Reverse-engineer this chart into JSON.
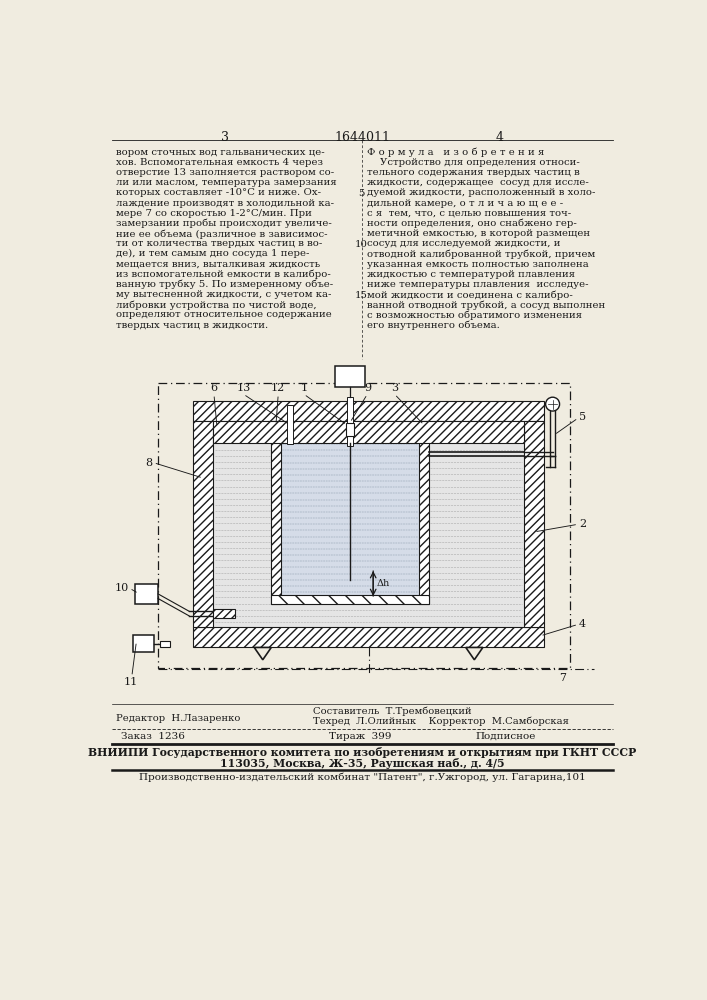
{
  "bg_color": "#f0ece0",
  "text_color": "#1a1a1a",
  "title_number": "1644011",
  "page_left": "3",
  "page_right": "4",
  "col1_text": [
    "вором сточных вод гальванических це-",
    "хов. Вспомогательная емкость 4 через",
    "отверстие 13 заполняется раствором со-",
    "ли или маслом, температура замерзания",
    "которых составляет -10°C и ниже. Ох-",
    "лаждение производят в холодильной ка-",
    "мере 7 со скоростью 1-2°С/мин. При",
    "замерзании пробы происходит увеличе-",
    "ние ее объема (различное в зависимос-",
    "ти от количества твердых частиц в во-",
    "де), и тем самым дно сосуда 1 пере-",
    "мещается вниз, выталкивая жидкость",
    "из вспомогательной емкости в калибро-",
    "ванную трубку 5. По измеренному объе-",
    "му вытесненной жидкости, с учетом ка-",
    "либровки устройства по чистой воде,",
    "определяют относительное содержание",
    "твердых частиц в жидкости."
  ],
  "col2_header": "Ф о р м у л а   и з о б р е т е н и я",
  "col2_text": [
    "    Устройство для определения относи-",
    "тельного содержания твердых частиц в",
    "жидкости, содержащее  сосуд для иссле-",
    "дуемой жидкости, расположенный в холо-",
    "дильной камере, о т л и ч а ю щ е е -",
    "с я  тем, что, с целью повышения точ-",
    "ности определения, оно снабжено гер-",
    "метичной емкостью, в которой размещен",
    "сосуд для исследуемой жидкости, и",
    "отводной калиброванной трубкой, причем",
    "указанная емкость полностью заполнена",
    "жидкостью с температурой плавления",
    "ниже температуры плавления  исследуе-",
    "мой жидкости и соединена с калибро-",
    "ванной отводной трубкой, а сосуд выполнен",
    "с возможностью обратимого изменения",
    "его внутреннего объема."
  ],
  "line_numbers": [
    "5",
    "10",
    "15"
  ],
  "editor_label": "Редактор  Н.Лазаренко",
  "composer_label": "Составитель  Т.Трембовецкий",
  "techred_label": "Техред  Л.Олийнык    Корректор  М.Самборская",
  "order_label": "Заказ  1236",
  "tirazh_label": "Тираж  399",
  "podpisnoe_label": "Подписное",
  "vniipи1": "ВНИИПИ Государственного комитета по изобретениям и открытиям при ГКНТ СССР",
  "vniipи2": "113035, Москва, Ж-35, Раушская наб., д. 4/5",
  "patent": "Производственно-издательский комбинат \"Патент\", г.Ужгород, ул. Гагарина,101"
}
